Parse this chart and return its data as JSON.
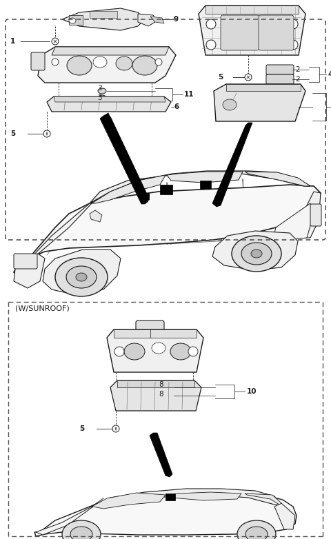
{
  "bg_color": "#ffffff",
  "line_color": "#1a1a1a",
  "gray_fill": "#e8e8e8",
  "dark_gray": "#666666",
  "mid_gray": "#999999",
  "sunroof_label": "(W/SUNROOF)",
  "fig_width": 4.8,
  "fig_height": 7.82,
  "dpi": 100
}
